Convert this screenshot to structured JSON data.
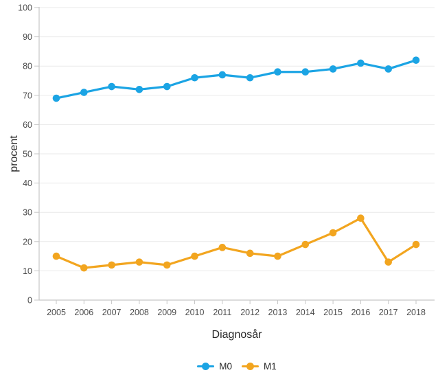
{
  "chart_data": {
    "type": "line",
    "title": "",
    "xlabel": "Diagnosår",
    "ylabel": "procent",
    "x": [
      2005,
      2006,
      2007,
      2008,
      2009,
      2010,
      2011,
      2012,
      2013,
      2014,
      2015,
      2016,
      2017,
      2018
    ],
    "series": [
      {
        "name": "M0",
        "color": "#1BA4E4",
        "values": [
          69,
          71,
          73,
          72,
          73,
          76,
          77,
          76,
          78,
          78,
          79,
          81,
          79,
          82
        ]
      },
      {
        "name": "M1",
        "color": "#F2A51F",
        "values": [
          15,
          11,
          12,
          13,
          12,
          15,
          18,
          16,
          15,
          19,
          23,
          28,
          13,
          19
        ]
      }
    ],
    "ylim": [
      0,
      100
    ],
    "y_ticks": [
      0,
      10,
      20,
      30,
      40,
      50,
      60,
      70,
      80,
      90,
      100
    ],
    "grid": "horizontal",
    "legend_position": "bottom",
    "colors": {
      "grid": "#e9e9e9",
      "axis": "#c6c6c6",
      "tick_label": "#4d4d4d",
      "title": "#262626"
    }
  }
}
